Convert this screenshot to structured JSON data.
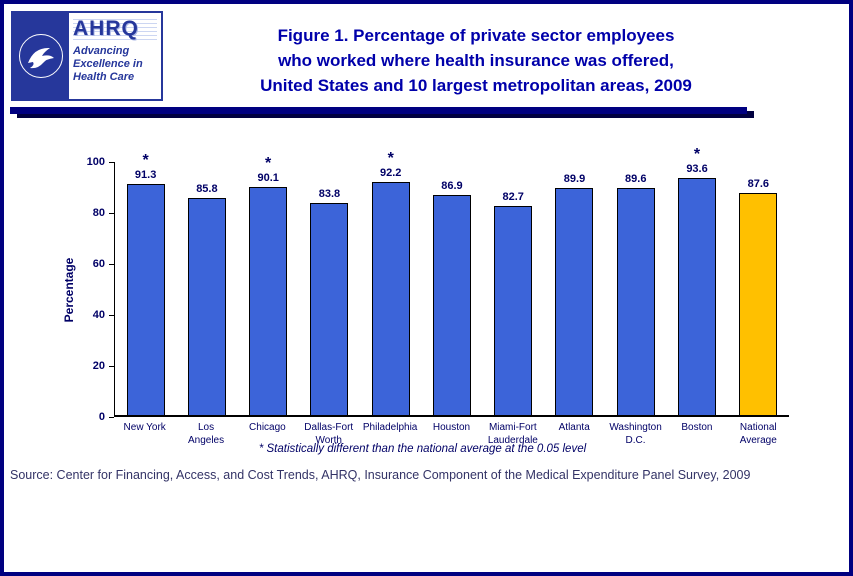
{
  "colors": {
    "page_border": "#000080",
    "title_text": "#0000AA",
    "bar_blue": "#3C64D9",
    "bar_gold": "#FFC000",
    "axis_text": "#000066"
  },
  "logo": {
    "org": "AHRQ",
    "tagline_line1": "Advancing",
    "tagline_line2": "Excellence in",
    "tagline_line3": "Health Care"
  },
  "title": {
    "line1": "Figure 1. Percentage of private sector employees",
    "line2": "who worked where health insurance was offered,",
    "line3": "United States and 10 largest metropolitan areas, 2009"
  },
  "chart_data": {
    "type": "bar",
    "title": "Figure 1. Percentage of private sector employees who worked where health insurance was offered, United States and 10 largest metropolitan areas, 2009",
    "xlabel": "",
    "ylabel": "Percentage",
    "ylim": [
      0,
      100
    ],
    "yticks": [
      0,
      20,
      40,
      60,
      80,
      100
    ],
    "grid": false,
    "legend": false,
    "categories": [
      "New York",
      "Los Angeles",
      "Chicago",
      "Dallas-Fort Worth",
      "Philadelphia",
      "Houston",
      "Miami-Fort Lauderdale",
      "Atlanta",
      "Washington D.C.",
      "Boston",
      "National Average"
    ],
    "tick_labels": [
      "New York",
      "Los\nAngeles",
      "Chicago",
      "Dallas-Fort\nWorth",
      "Philadelphia",
      "Houston",
      "Miami-Fort\nLauderdale",
      "Atlanta",
      "Washington\nD.C.",
      "Boston",
      "National\nAverage"
    ],
    "values": [
      91.3,
      85.8,
      90.1,
      83.8,
      92.2,
      86.9,
      82.7,
      89.9,
      89.6,
      93.6,
      87.6
    ],
    "significant": [
      true,
      false,
      true,
      false,
      true,
      false,
      false,
      false,
      false,
      true,
      false
    ],
    "bar_color": "#3C64D9",
    "highlight_color": "#FFC000",
    "highlight_index": 10
  },
  "footnote": "* Statistically different than the national average at the 0.05 level",
  "source": "Source: Center for Financing, Access, and Cost Trends, AHRQ, Insurance Component of the Medical Expenditure Panel Survey, 2009"
}
